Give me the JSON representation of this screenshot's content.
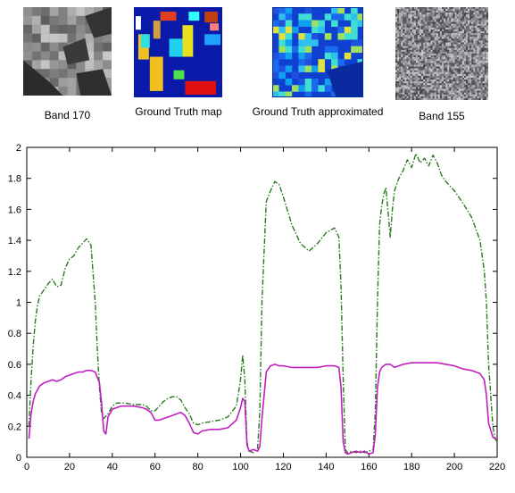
{
  "thumbnails": [
    {
      "caption": "Band 170",
      "style": "band-grayscale"
    },
    {
      "caption": "Ground Truth map",
      "style": "ground-truth-classes"
    },
    {
      "caption": "Ground Truth approximated",
      "style": "ground-truth-approximated"
    },
    {
      "caption": "Band 155",
      "style": "noise"
    }
  ],
  "chart_data": {
    "type": "line",
    "title": "",
    "xlabel": "",
    "ylabel": "",
    "xlim": [
      0,
      220
    ],
    "ylim": [
      0,
      2
    ],
    "xticks": [
      0,
      20,
      40,
      60,
      80,
      100,
      120,
      140,
      160,
      180,
      200,
      220
    ],
    "yticks": [
      0,
      0.2,
      0.4,
      0.6,
      0.8,
      1,
      1.2,
      1.4,
      1.6,
      1.8,
      2
    ],
    "grid": false,
    "legend": false,
    "series": [
      {
        "color": "#2a7a1e",
        "dash": "dash-dot",
        "x": [
          1,
          2,
          3,
          4,
          5,
          6,
          8,
          10,
          12,
          14,
          16,
          18,
          20,
          22,
          24,
          26,
          28,
          30,
          32,
          33,
          34,
          35,
          36,
          38,
          40,
          42,
          44,
          46,
          50,
          54,
          56,
          58,
          60,
          62,
          64,
          66,
          68,
          70,
          72,
          74,
          76,
          78,
          80,
          82,
          86,
          90,
          94,
          98,
          100,
          101,
          102,
          103,
          104,
          106,
          108,
          109,
          110,
          112,
          114,
          116,
          118,
          120,
          124,
          128,
          132,
          136,
          140,
          144,
          146,
          147,
          148,
          149,
          150,
          152,
          154,
          156,
          158,
          160,
          162,
          163,
          164,
          165,
          166,
          167,
          168,
          170,
          171,
          172,
          174,
          176,
          178,
          180,
          182,
          184,
          186,
          188,
          190,
          192,
          194,
          196,
          198,
          200,
          204,
          208,
          212,
          214,
          215,
          216,
          218,
          219,
          220
        ],
        "y": [
          0.2,
          0.5,
          0.72,
          0.88,
          0.98,
          1.04,
          1.08,
          1.12,
          1.15,
          1.1,
          1.11,
          1.22,
          1.28,
          1.3,
          1.35,
          1.38,
          1.41,
          1.37,
          1.0,
          0.7,
          0.45,
          0.28,
          0.25,
          0.28,
          0.33,
          0.35,
          0.35,
          0.35,
          0.34,
          0.34,
          0.33,
          0.3,
          0.3,
          0.33,
          0.36,
          0.38,
          0.39,
          0.39,
          0.37,
          0.32,
          0.28,
          0.22,
          0.21,
          0.22,
          0.23,
          0.24,
          0.26,
          0.33,
          0.5,
          0.66,
          0.5,
          0.1,
          0.04,
          0.03,
          0.06,
          0.3,
          1.0,
          1.65,
          1.72,
          1.78,
          1.76,
          1.68,
          1.5,
          1.38,
          1.33,
          1.38,
          1.45,
          1.48,
          1.42,
          1.1,
          0.5,
          0.05,
          0.03,
          0.04,
          0.03,
          0.04,
          0.03,
          0.04,
          0.05,
          0.3,
          1.0,
          1.5,
          1.62,
          1.7,
          1.74,
          1.42,
          1.6,
          1.72,
          1.8,
          1.85,
          1.92,
          1.87,
          1.96,
          1.9,
          1.93,
          1.88,
          1.95,
          1.9,
          1.82,
          1.78,
          1.75,
          1.72,
          1.64,
          1.55,
          1.4,
          1.2,
          1.0,
          0.6,
          0.2,
          0.12,
          0.1
        ]
      },
      {
        "color": "#c020c0",
        "dash": "solid",
        "x": [
          1,
          2,
          3,
          4,
          6,
          8,
          10,
          12,
          14,
          16,
          18,
          20,
          22,
          24,
          26,
          28,
          30,
          32,
          34,
          35,
          36,
          37,
          38,
          40,
          44,
          50,
          54,
          56,
          58,
          60,
          62,
          64,
          68,
          72,
          74,
          76,
          78,
          80,
          82,
          86,
          90,
          94,
          98,
          100,
          101,
          102,
          103,
          104,
          106,
          108,
          109,
          110,
          112,
          114,
          116,
          118,
          120,
          124,
          128,
          132,
          136,
          140,
          144,
          146,
          147,
          148,
          149,
          150,
          152,
          154,
          156,
          158,
          160,
          162,
          163,
          164,
          165,
          166,
          167,
          168,
          170,
          172,
          174,
          176,
          180,
          184,
          188,
          192,
          196,
          200,
          204,
          208,
          212,
          214,
          215,
          216,
          218,
          219,
          220
        ],
        "y": [
          0.12,
          0.28,
          0.36,
          0.41,
          0.46,
          0.48,
          0.49,
          0.5,
          0.49,
          0.5,
          0.52,
          0.53,
          0.54,
          0.55,
          0.55,
          0.56,
          0.56,
          0.55,
          0.48,
          0.35,
          0.17,
          0.15,
          0.26,
          0.31,
          0.33,
          0.33,
          0.32,
          0.31,
          0.29,
          0.24,
          0.24,
          0.25,
          0.27,
          0.29,
          0.27,
          0.22,
          0.16,
          0.15,
          0.17,
          0.18,
          0.18,
          0.19,
          0.24,
          0.32,
          0.38,
          0.36,
          0.08,
          0.04,
          0.05,
          0.04,
          0.07,
          0.25,
          0.55,
          0.59,
          0.6,
          0.59,
          0.59,
          0.58,
          0.58,
          0.58,
          0.58,
          0.59,
          0.59,
          0.58,
          0.45,
          0.1,
          0.03,
          0.02,
          0.03,
          0.04,
          0.03,
          0.04,
          0.02,
          0.03,
          0.15,
          0.45,
          0.55,
          0.58,
          0.59,
          0.6,
          0.6,
          0.58,
          0.59,
          0.6,
          0.61,
          0.61,
          0.61,
          0.61,
          0.6,
          0.59,
          0.57,
          0.56,
          0.54,
          0.5,
          0.4,
          0.22,
          0.13,
          0.12,
          0.12
        ]
      }
    ]
  }
}
